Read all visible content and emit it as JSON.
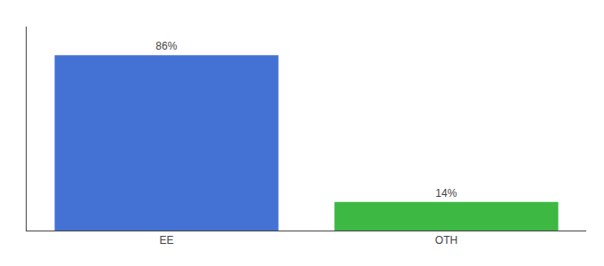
{
  "chart_data": {
    "type": "bar",
    "categories": [
      "EE",
      "OTH"
    ],
    "values": [
      86,
      14
    ],
    "value_labels": [
      "86%",
      "14%"
    ],
    "colors": [
      "#4472d4",
      "#3cb843"
    ],
    "ylim": [
      0,
      100
    ],
    "data_labels": true,
    "tick_labels": "x",
    "grid": false
  }
}
